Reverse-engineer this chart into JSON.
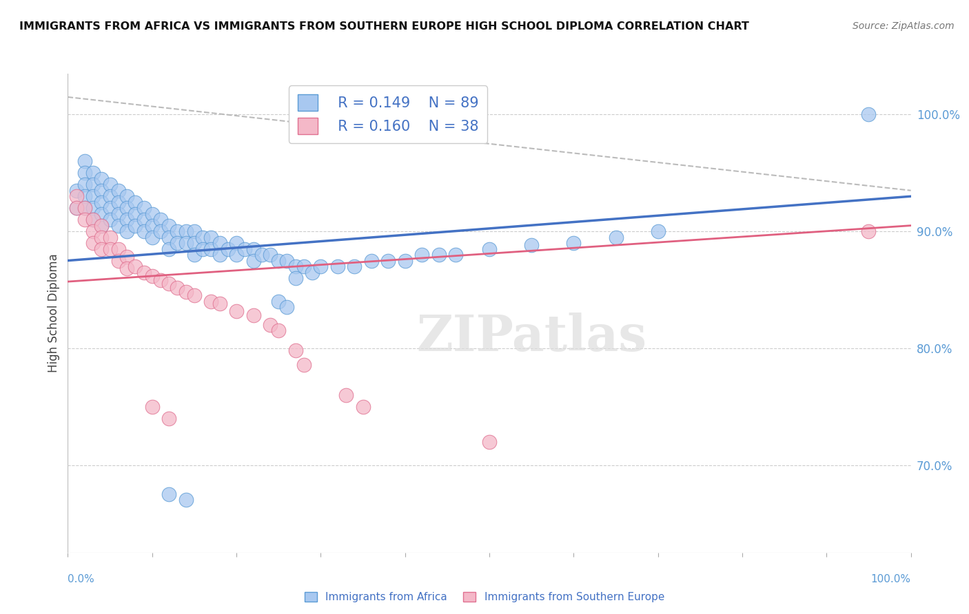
{
  "title": "IMMIGRANTS FROM AFRICA VS IMMIGRANTS FROM SOUTHERN EUROPE HIGH SCHOOL DIPLOMA CORRELATION CHART",
  "source": "Source: ZipAtlas.com",
  "ylabel": "High School Diploma",
  "bottom_label_africa": "Immigrants from Africa",
  "bottom_label_europe": "Immigrants from Southern Europe",
  "legend_africa_R": "R = 0.149",
  "legend_africa_N": "N = 89",
  "legend_europe_R": "R = 0.160",
  "legend_europe_N": "N = 38",
  "color_africa_fill": "#A8C8F0",
  "color_africa_edge": "#5B9BD5",
  "color_europe_fill": "#F4B8C8",
  "color_europe_edge": "#E07090",
  "color_africa_line": "#4472C4",
  "color_europe_line": "#E06080",
  "color_dashed": "#BBBBBB",
  "color_tick_label": "#5B9BD5",
  "xlim": [
    0.0,
    1.0
  ],
  "ylim": [
    0.625,
    1.035
  ],
  "yticks": [
    0.7,
    0.8,
    0.9,
    1.0
  ],
  "ytick_labels": [
    "70.0%",
    "80.0%",
    "90.0%",
    "100.0%"
  ],
  "africa_line_x0": 0.0,
  "africa_line_x1": 1.0,
  "africa_line_y0": 0.875,
  "africa_line_y1": 0.93,
  "europe_line_x0": 0.0,
  "europe_line_x1": 1.0,
  "europe_line_y0": 0.857,
  "europe_line_y1": 0.905,
  "dashed_line_x0": 0.0,
  "dashed_line_x1": 1.0,
  "dashed_line_y0": 1.015,
  "dashed_line_y1": 0.935,
  "background_color": "#FFFFFF",
  "grid_color": "#CCCCCC",
  "africa_x": [
    0.01,
    0.01,
    0.02,
    0.02,
    0.02,
    0.02,
    0.02,
    0.03,
    0.03,
    0.03,
    0.03,
    0.03,
    0.04,
    0.04,
    0.04,
    0.04,
    0.04,
    0.05,
    0.05,
    0.05,
    0.05,
    0.06,
    0.06,
    0.06,
    0.06,
    0.07,
    0.07,
    0.07,
    0.07,
    0.08,
    0.08,
    0.08,
    0.09,
    0.09,
    0.09,
    0.1,
    0.1,
    0.1,
    0.11,
    0.11,
    0.12,
    0.12,
    0.12,
    0.13,
    0.13,
    0.14,
    0.14,
    0.15,
    0.15,
    0.15,
    0.16,
    0.16,
    0.17,
    0.17,
    0.18,
    0.18,
    0.19,
    0.2,
    0.2,
    0.21,
    0.22,
    0.22,
    0.23,
    0.24,
    0.25,
    0.26,
    0.27,
    0.27,
    0.28,
    0.29,
    0.3,
    0.32,
    0.34,
    0.36,
    0.38,
    0.4,
    0.42,
    0.44,
    0.46,
    0.5,
    0.55,
    0.6,
    0.65,
    0.7,
    0.25,
    0.26,
    0.12,
    0.14,
    0.95
  ],
  "africa_y": [
    0.935,
    0.92,
    0.96,
    0.95,
    0.94,
    0.93,
    0.92,
    0.95,
    0.94,
    0.93,
    0.92,
    0.91,
    0.945,
    0.935,
    0.925,
    0.915,
    0.905,
    0.94,
    0.93,
    0.92,
    0.91,
    0.935,
    0.925,
    0.915,
    0.905,
    0.93,
    0.92,
    0.91,
    0.9,
    0.925,
    0.915,
    0.905,
    0.92,
    0.91,
    0.9,
    0.915,
    0.905,
    0.895,
    0.91,
    0.9,
    0.905,
    0.895,
    0.885,
    0.9,
    0.89,
    0.9,
    0.89,
    0.9,
    0.89,
    0.88,
    0.895,
    0.885,
    0.895,
    0.885,
    0.89,
    0.88,
    0.885,
    0.89,
    0.88,
    0.885,
    0.885,
    0.875,
    0.88,
    0.88,
    0.875,
    0.875,
    0.87,
    0.86,
    0.87,
    0.865,
    0.87,
    0.87,
    0.87,
    0.875,
    0.875,
    0.875,
    0.88,
    0.88,
    0.88,
    0.885,
    0.888,
    0.89,
    0.895,
    0.9,
    0.84,
    0.835,
    0.675,
    0.67,
    1.0
  ],
  "europe_x": [
    0.01,
    0.01,
    0.02,
    0.02,
    0.03,
    0.03,
    0.03,
    0.04,
    0.04,
    0.04,
    0.05,
    0.05,
    0.06,
    0.06,
    0.07,
    0.07,
    0.08,
    0.09,
    0.1,
    0.11,
    0.12,
    0.13,
    0.14,
    0.15,
    0.17,
    0.18,
    0.2,
    0.22,
    0.24,
    0.25,
    0.27,
    0.28,
    0.33,
    0.35,
    0.5,
    0.95,
    0.1,
    0.12
  ],
  "europe_y": [
    0.93,
    0.92,
    0.92,
    0.91,
    0.91,
    0.9,
    0.89,
    0.905,
    0.895,
    0.885,
    0.895,
    0.885,
    0.885,
    0.875,
    0.878,
    0.868,
    0.87,
    0.865,
    0.862,
    0.858,
    0.855,
    0.852,
    0.848,
    0.845,
    0.84,
    0.838,
    0.832,
    0.828,
    0.82,
    0.815,
    0.798,
    0.786,
    0.76,
    0.75,
    0.72,
    0.9,
    0.75,
    0.74
  ]
}
